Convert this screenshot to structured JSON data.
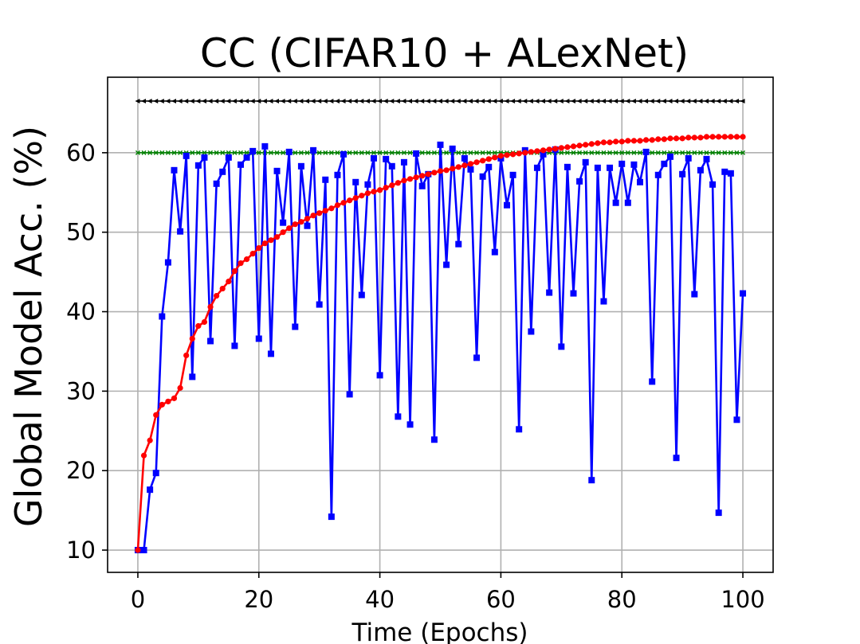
{
  "chart_data": {
    "type": "line",
    "title": "CC (CIFAR10 + ALexNet)",
    "xlabel": "Time (Epochs)",
    "ylabel": "Global Model Acc. (%)",
    "xlim": [
      -5,
      105
    ],
    "ylim": [
      7.2,
      69.5
    ],
    "xticks": [
      0,
      20,
      40,
      60,
      80,
      100
    ],
    "yticks": [
      10,
      20,
      30,
      40,
      50,
      60
    ],
    "xtick_labels": [
      "0",
      "20",
      "40",
      "60",
      "80",
      "100"
    ],
    "ytick_labels": [
      "10",
      "20",
      "30",
      "40",
      "50",
      "60"
    ],
    "grid": true,
    "series": [
      {
        "color": "#000000",
        "marker": "triangle-left",
        "constant": 66.5
      },
      {
        "color": "#008000",
        "marker": "x",
        "constant": 60.0
      },
      {
        "color": "#0000ff",
        "marker": "square",
        "values": [
          10.0,
          10.0,
          17.6,
          19.7,
          39.4,
          46.2,
          57.8,
          50.1,
          59.6,
          31.8,
          58.4,
          59.4,
          36.3,
          56.1,
          57.6,
          59.4,
          35.7,
          58.5,
          59.4,
          60.2,
          36.6,
          60.8,
          34.7,
          57.7,
          51.2,
          60.1,
          38.1,
          58.3,
          50.8,
          60.3,
          40.9,
          56.6,
          14.2,
          57.2,
          59.8,
          29.6,
          56.3,
          42.1,
          56.0,
          59.3,
          32.0,
          59.2,
          58.3,
          26.8,
          58.8,
          25.8,
          59.9,
          55.8,
          57.3,
          23.9,
          61.0,
          45.9,
          60.5,
          48.5,
          59.3,
          57.9,
          34.2,
          57.0,
          58.2,
          47.5,
          59.3,
          53.4,
          57.2,
          25.2,
          60.3,
          37.5,
          58.1,
          59.8,
          42.4,
          60.4,
          35.6,
          58.2,
          42.3,
          56.4,
          58.8,
          18.8,
          58.1,
          41.3,
          58.1,
          53.7,
          58.6,
          53.7,
          58.5,
          56.3,
          60.1,
          31.2,
          57.2,
          58.6,
          59.5,
          21.6,
          57.3,
          59.3,
          42.2,
          57.8,
          59.2,
          56.0,
          14.7,
          57.6,
          57.4,
          26.4,
          42.3
        ]
      },
      {
        "color": "#ff0000",
        "marker": "circle",
        "values": [
          10.0,
          21.9,
          23.8,
          27.0,
          28.3,
          28.7,
          29.1,
          30.4,
          34.5,
          36.6,
          38.2,
          38.7,
          40.6,
          42.0,
          42.9,
          43.8,
          45.1,
          46.1,
          46.6,
          47.3,
          48.0,
          48.6,
          49.0,
          49.4,
          50.0,
          50.5,
          51.0,
          51.3,
          51.7,
          52.1,
          52.4,
          52.7,
          53.0,
          53.4,
          53.7,
          54.0,
          54.3,
          54.6,
          54.9,
          55.1,
          55.3,
          55.6,
          55.9,
          56.2,
          56.5,
          56.7,
          56.9,
          57.1,
          57.3,
          57.5,
          57.7,
          57.8,
          58.0,
          58.2,
          58.4,
          58.6,
          58.8,
          59.0,
          59.2,
          59.4,
          59.6,
          59.7,
          59.8,
          59.9,
          60.0,
          60.1,
          60.2,
          60.3,
          60.4,
          60.5,
          60.6,
          60.7,
          60.8,
          60.9,
          61.0,
          61.1,
          61.2,
          61.3,
          61.3,
          61.4,
          61.4,
          61.5,
          61.5,
          61.5,
          61.6,
          61.6,
          61.7,
          61.7,
          61.8,
          61.8,
          61.8,
          61.9,
          61.9,
          61.9,
          62.0,
          62.0,
          62.0,
          62.0,
          62.0,
          62.0,
          62.0
        ]
      }
    ]
  }
}
